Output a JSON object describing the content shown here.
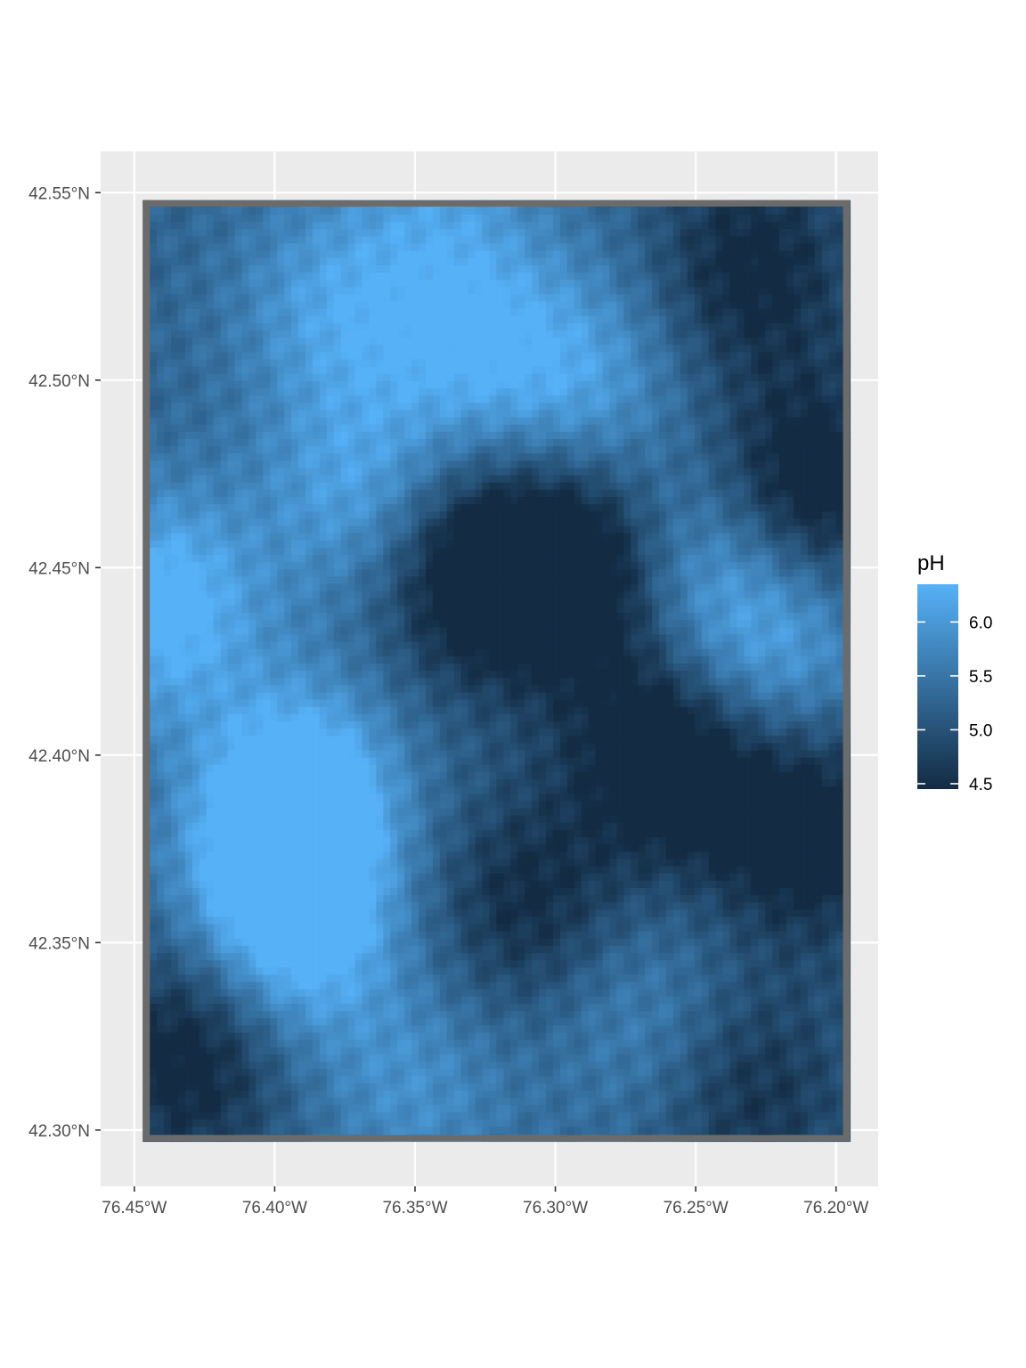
{
  "chart_data": {
    "type": "heatmap",
    "title": "",
    "xlabel": "",
    "ylabel": "",
    "x_ticks": [
      {
        "value": -76.45,
        "label": "76.45°W"
      },
      {
        "value": -76.4,
        "label": "76.40°W"
      },
      {
        "value": -76.35,
        "label": "76.35°W"
      },
      {
        "value": -76.3,
        "label": "76.30°W"
      },
      {
        "value": -76.25,
        "label": "76.25°W"
      },
      {
        "value": -76.2,
        "label": "76.20°W"
      }
    ],
    "y_ticks": [
      {
        "value": 42.55,
        "label": "42.55°N"
      },
      {
        "value": 42.5,
        "label": "42.50°N"
      },
      {
        "value": 42.45,
        "label": "42.45°N"
      },
      {
        "value": 42.4,
        "label": "42.40°N"
      },
      {
        "value": 42.35,
        "label": "42.35°N"
      },
      {
        "value": 42.3,
        "label": "42.30°N"
      }
    ],
    "xlim": [
      -76.462,
      -76.185
    ],
    "ylim": [
      42.285,
      42.561
    ],
    "raster_extent": {
      "lon": [
        -76.447,
        -76.195
      ],
      "lat": [
        42.297,
        42.548
      ]
    },
    "grid": true,
    "na_color": "#6b6b6b",
    "legend": {
      "title": "pH",
      "position": "right",
      "min": 4.45,
      "max": 6.35,
      "breaks": [
        4.5,
        5.0,
        5.5,
        6.0
      ],
      "labels": [
        "4.5",
        "5.0",
        "5.5",
        "6.0"
      ],
      "color_low": "#132b43",
      "color_high": "#56b1f7"
    },
    "value_pattern": {
      "cols": 100,
      "rows": 130,
      "centers": [
        {
          "lon": -76.44,
          "lat": 42.44,
          "value": 1.3
        },
        {
          "lon": -76.39,
          "lat": 42.39,
          "value": 1.3
        },
        {
          "lon": -76.4,
          "lat": 42.37,
          "value": 1.0
        },
        {
          "lon": -76.39,
          "lat": 42.35,
          "value": 0.9
        },
        {
          "lon": -76.37,
          "lat": 42.47,
          "value": 0.9
        },
        {
          "lon": -76.38,
          "lat": 42.52,
          "value": 0.8
        },
        {
          "lon": -76.33,
          "lat": 42.51,
          "value": 0.9
        },
        {
          "lon": -76.29,
          "lat": 42.5,
          "value": 0.8
        },
        {
          "lon": -76.25,
          "lat": 42.45,
          "value": 0.8
        },
        {
          "lon": -76.22,
          "lat": 42.43,
          "value": 0.9
        },
        {
          "lon": -76.35,
          "lat": 42.31,
          "value": 0.6
        },
        {
          "lon": -76.27,
          "lat": 42.33,
          "value": 0.5
        },
        {
          "lon": -76.34,
          "lat": 42.55,
          "value": 0.6
        },
        {
          "lon": -76.33,
          "lat": 42.45,
          "value": -1.2
        },
        {
          "lon": -76.29,
          "lat": 42.45,
          "value": -1.3
        },
        {
          "lon": -76.26,
          "lat": 42.4,
          "value": -1.2
        },
        {
          "lon": -76.21,
          "lat": 42.38,
          "value": -1.1
        },
        {
          "lon": -76.21,
          "lat": 42.47,
          "value": -1.2
        },
        {
          "lon": -76.23,
          "lat": 42.53,
          "value": -0.9
        },
        {
          "lon": -76.43,
          "lat": 42.32,
          "value": -1.0
        },
        {
          "lon": -76.31,
          "lat": 42.36,
          "value": -0.8
        },
        {
          "lon": -76.23,
          "lat": 42.31,
          "value": -0.7
        }
      ]
    }
  }
}
